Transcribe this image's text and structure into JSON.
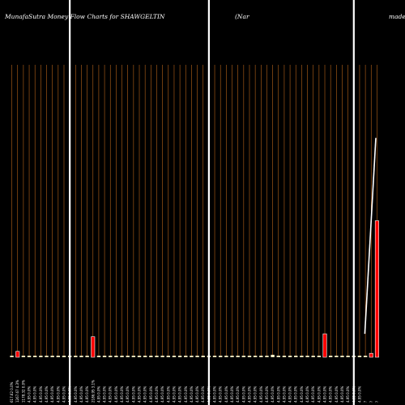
{
  "chart_data": {
    "type": "bar",
    "title": "MunafaSutra  Money Flow  Charts for SHAWGELTIN",
    "title_right_a": "(Nar",
    "title_right_b": "made",
    "xlabel": "",
    "ylabel": "",
    "ylim": [
      0,
      60
    ],
    "grid": true,
    "legend": "none",
    "highlight_indices": [
      10,
      34,
      59
    ],
    "colors": {
      "background": "#000000",
      "grid": "#b8641a",
      "bar": "#ff0000",
      "bar_edge": "#ffffff",
      "baseline_bar": "#f5f0c8",
      "highlight_line": "#ffffff",
      "trend_line": "#ffffff",
      "text": "#ffffff"
    },
    "categories": [
      "617.62 0.0%",
      "1267.67 4.3%",
      "1178.32 0.0%",
      "4.95 0.0%",
      "4.95 0.0%",
      "4.95 0.0%",
      "4.95 0.0%",
      "4.95 0.0%",
      "4.95 0.0%",
      "4.95 0.0%",
      "4.95 0.0%",
      "4.95 0.0%",
      "4.95 0.0%",
      "4.95 0.0%",
      "2186.95 3.1%",
      "4.95 0.0%",
      "4.95 0.0%",
      "4.95 0.0%",
      "4.95 0.0%",
      "4.95 0.0%",
      "4.95 0.0%",
      "4.95 0.0%",
      "4.95 0.0%",
      "4.95 0.0%",
      "4.95 0.0%",
      "4.95 0.0%",
      "4.95 0.0%",
      "4.95 0.0%",
      "4.95 0.0%",
      "4.95 0.0%",
      "4.95 0.0%",
      "4.95 0.0%",
      "4.95 0.0%",
      "4.95 0.0%",
      "4.95 0.0%",
      "4.95 0.0%",
      "4.95 0.0%",
      "4.95 0.0%",
      "4.95 0.0%",
      "4.95 0.0%",
      "4.95 0.0%",
      "4.95 0.0%",
      "4.95 0.0%",
      "4.95 0.0%",
      "4.95 0.0%",
      "4.95 0.0%",
      "4.95 0.0%",
      "4.95 0.0%",
      "4.95 0.0%",
      "4.95 0.0%",
      "4.95 0.0%",
      "4.95 0.0%",
      "4.95 0.0%",
      "4.95 0.0%",
      "4.95 0.0%",
      "4.95 0.0%",
      "4.95 0.0%",
      "4.95 0.0%",
      "4.95 0.0%",
      "4.95 0.0%",
      "4.95 0.0%",
      "?",
      "?",
      "?"
    ],
    "values": [
      0.3,
      1.2,
      0.3,
      0.3,
      0.3,
      0.3,
      0.3,
      0.3,
      0.3,
      0.3,
      0.3,
      0.3,
      0.3,
      0.3,
      4.2,
      0.3,
      0.3,
      0.3,
      0.3,
      0.3,
      0.3,
      0.3,
      0.3,
      0.3,
      0.3,
      0.3,
      0.3,
      0.3,
      0.3,
      0.3,
      0.3,
      0.3,
      0.3,
      0.3,
      0.3,
      0.3,
      0.3,
      0.3,
      0.3,
      0.3,
      0.3,
      0.3,
      0.3,
      0.3,
      0.3,
      0.5,
      0.3,
      0.3,
      0.3,
      0.3,
      0.3,
      0.3,
      0.3,
      0.3,
      4.8,
      0.3,
      0.3,
      0.3,
      0.3,
      0.3,
      0.3,
      0.3,
      0.8,
      28.0
    ],
    "trend_line": {
      "x": [
        61.4,
        63.3
      ],
      "y": [
        4.8,
        45.0
      ]
    }
  }
}
